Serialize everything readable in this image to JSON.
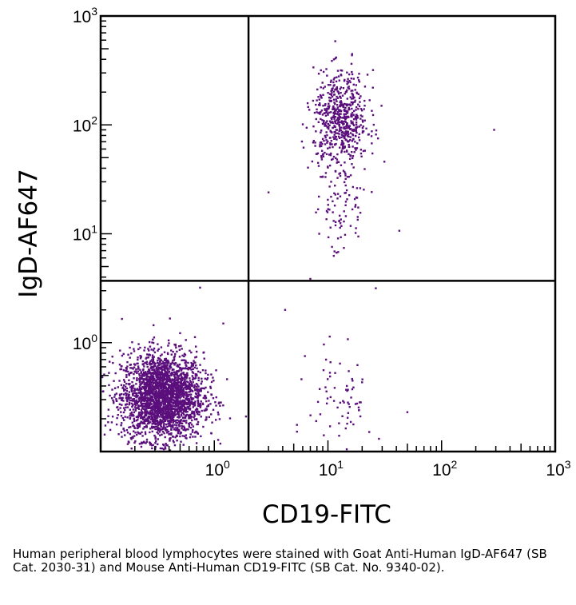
{
  "chart_data": {
    "type": "scatter",
    "subtype": "flow-cytometry-dot-plot",
    "title": "",
    "xlabel": "CD19-FITC",
    "ylabel": "IgD-AF647",
    "xscale": "log",
    "yscale": "log",
    "xlim": [
      0.1,
      1000
    ],
    "ylim": [
      0.1,
      1000
    ],
    "x_ticks": [
      {
        "base": "10",
        "exp": "0",
        "value": 1
      },
      {
        "base": "10",
        "exp": "1",
        "value": 10
      },
      {
        "base": "10",
        "exp": "2",
        "value": 100
      },
      {
        "base": "10",
        "exp": "3",
        "value": 1000
      }
    ],
    "y_ticks": [
      {
        "base": "10",
        "exp": "0",
        "value": 1
      },
      {
        "base": "10",
        "exp": "1",
        "value": 10
      },
      {
        "base": "10",
        "exp": "2",
        "value": 100
      },
      {
        "base": "10",
        "exp": "3",
        "value": 1000
      }
    ],
    "quadrant_gate": {
      "x": 2.0,
      "y": 3.7
    },
    "dot_color": "#5b0f7c",
    "populations": [
      {
        "x_center": 0.35,
        "y_center": 0.32,
        "x_spread_log": 0.18,
        "y_spread_log": 0.2,
        "count": 2600
      },
      {
        "x_center": 13,
        "y_center": 110,
        "x_spread_log": 0.12,
        "y_spread_log": 0.22,
        "count": 620
      },
      {
        "x_center": 13,
        "y_center": 18,
        "x_spread_log": 0.12,
        "y_spread_log": 0.25,
        "count": 90
      },
      {
        "x_center": 13,
        "y_center": 0.3,
        "x_spread_log": 0.14,
        "y_spread_log": 0.25,
        "count": 70
      }
    ],
    "outliers": [
      {
        "x": 290,
        "y": 90
      },
      {
        "x": 3.0,
        "y": 24
      },
      {
        "x": 4.2,
        "y": 2.0
      },
      {
        "x": 1.2,
        "y": 1.5
      },
      {
        "x": 0.75,
        "y": 3.2
      },
      {
        "x": 50,
        "y": 0.23
      },
      {
        "x": 1.9,
        "y": 0.21
      }
    ],
    "grid": false
  },
  "caption": "Human peripheral blood lymphocytes were stained with Goat Anti-Human IgD-AF647 (SB Cat. 2030-31) and Mouse Anti-Human CD19-FITC (SB Cat. No. 9340-02)."
}
